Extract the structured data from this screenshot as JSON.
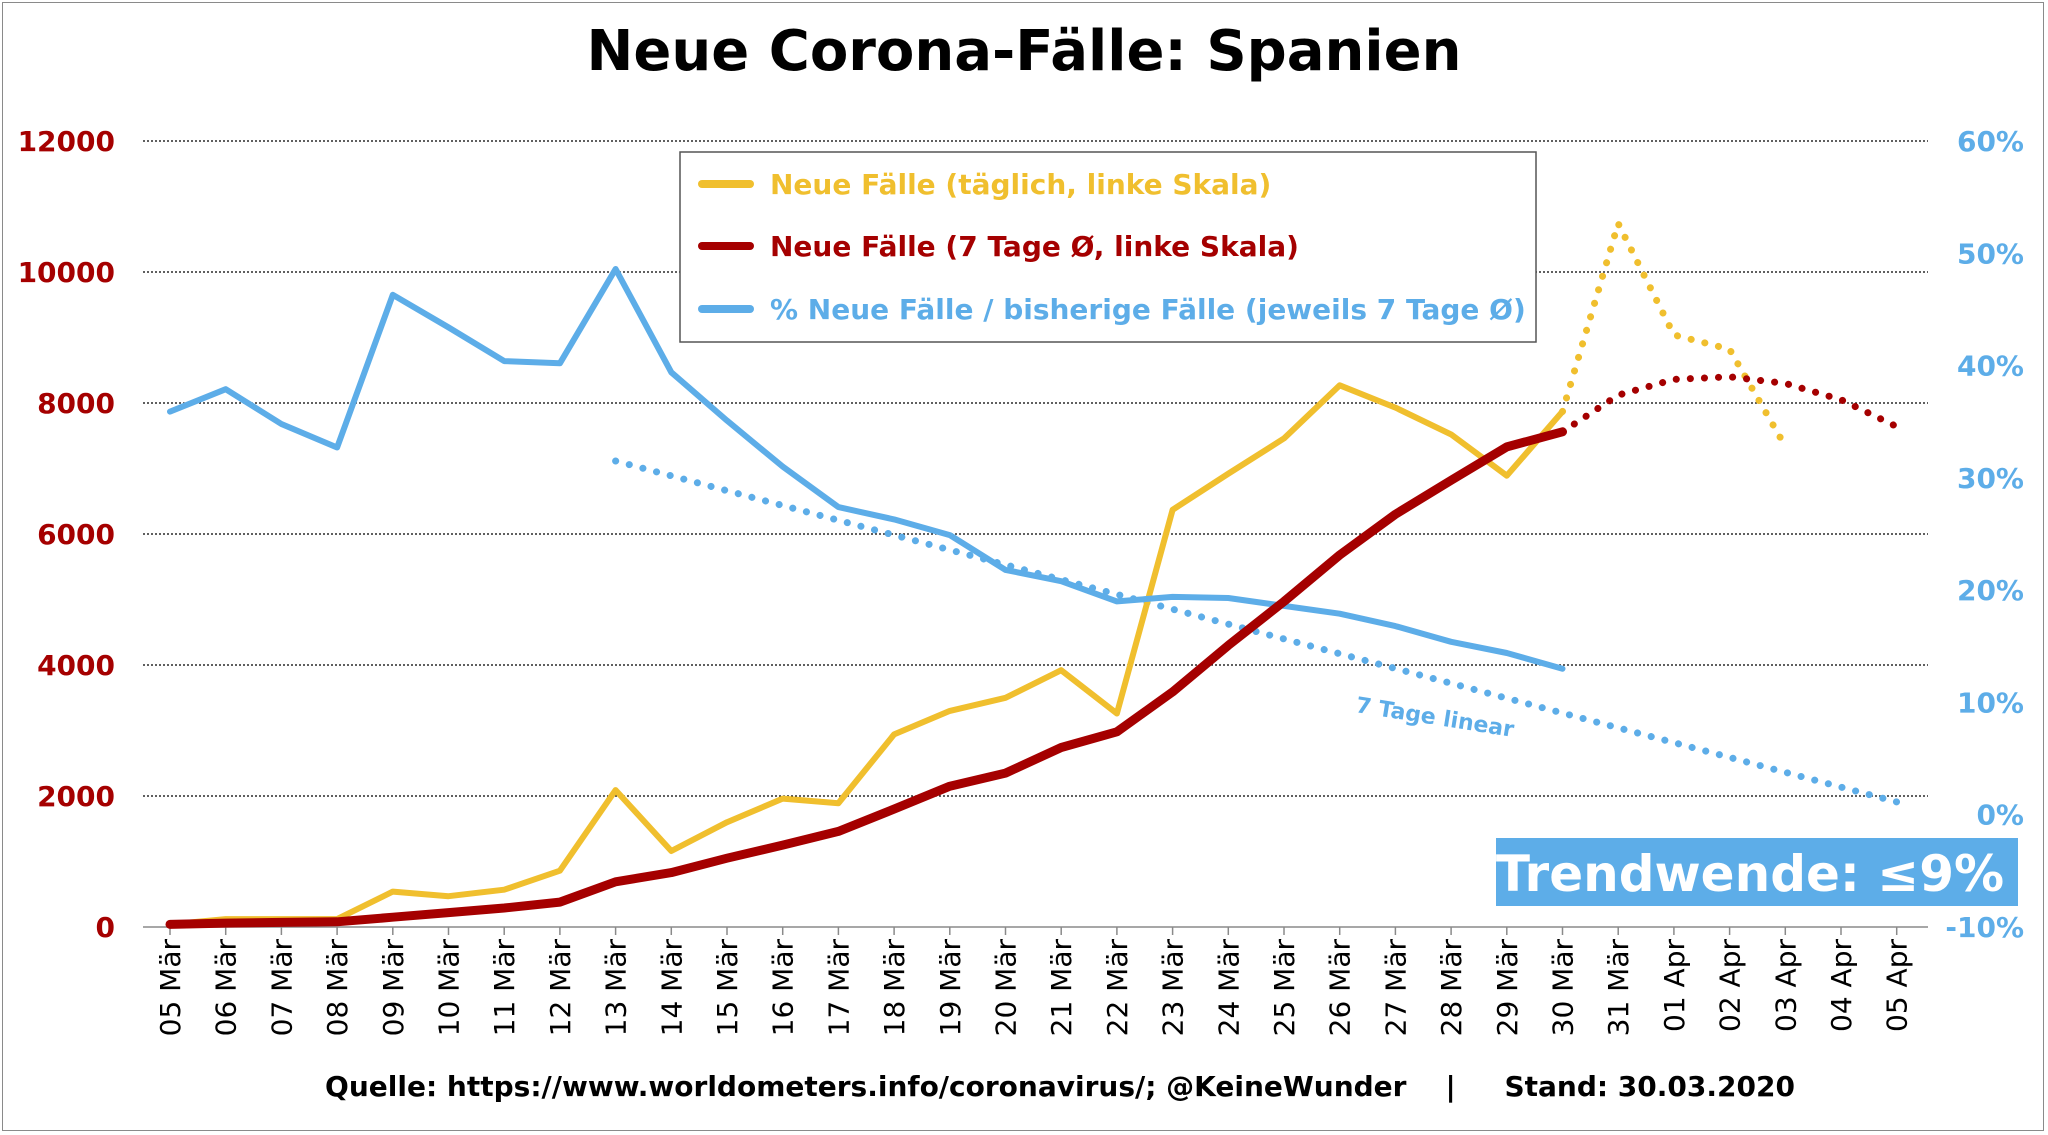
{
  "chart_data": {
    "type": "line",
    "title": "Neue Corona-Fälle: Spanien",
    "categories": [
      "05 Mär",
      "06 Mär",
      "07 Mär",
      "08 Mär",
      "09 Mär",
      "10 Mär",
      "11 Mär",
      "12 Mär",
      "13 Mär",
      "14 Mär",
      "15 Mär",
      "16 Mär",
      "17 Mär",
      "18 Mär",
      "19 Mär",
      "20 Mär",
      "21 Mär",
      "22 Mär",
      "23 Mär",
      "24 Mär",
      "25 Mär",
      "26 Mär",
      "27 Mär",
      "28 Mär",
      "29 Mär",
      "30 Mär",
      "31 Mär",
      "01 Apr",
      "02 Apr",
      "03 Apr",
      "04 Apr",
      "05 Apr"
    ],
    "y_left": {
      "ticks": [
        "0",
        "2000",
        "4000",
        "6000",
        "8000",
        "10000",
        "12000"
      ],
      "ylim": [
        0,
        12000
      ],
      "color": "#a50000"
    },
    "y_right": {
      "ticks": [
        "-10%",
        "0%",
        "10%",
        "20%",
        "30%",
        "40%",
        "50%",
        "60%"
      ],
      "ylim": [
        -10,
        60
      ],
      "color": "#5dade8"
    },
    "grid": true,
    "legend_position": "top-center",
    "series": [
      {
        "name": "Neue Fälle (täglich, linke Skala)",
        "axis": "left",
        "color": "#f0bf2e",
        "values": [
          40,
          120,
          120,
          120,
          540,
          470,
          570,
          860,
          2090,
          1160,
          1600,
          1960,
          1890,
          2940,
          3300,
          3500,
          3920,
          3260,
          6370,
          6920,
          7460,
          8270,
          7930,
          7520,
          6890,
          7870,
          null,
          null,
          null,
          null,
          null,
          null
        ],
        "projection": [
          null,
          null,
          null,
          null,
          null,
          null,
          null,
          null,
          null,
          null,
          null,
          null,
          null,
          null,
          null,
          null,
          null,
          null,
          null,
          null,
          null,
          null,
          null,
          null,
          null,
          7870,
          10740,
          9040,
          8820,
          7340,
          null,
          null
        ]
      },
      {
        "name": "Neue Fälle (7 Tage Ø, linke Skala)",
        "axis": "left",
        "color": "#a50000",
        "values": [
          40,
          60,
          70,
          80,
          150,
          220,
          290,
          380,
          690,
          830,
          1050,
          1250,
          1460,
          1800,
          2150,
          2350,
          2740,
          2980,
          3590,
          4300,
          4970,
          5680,
          6300,
          6820,
          7330,
          7560,
          null,
          null,
          null,
          null,
          null,
          null
        ],
        "projection": [
          null,
          null,
          null,
          null,
          null,
          null,
          null,
          null,
          null,
          null,
          null,
          null,
          null,
          null,
          null,
          null,
          null,
          null,
          null,
          null,
          null,
          null,
          null,
          null,
          null,
          7560,
          8120,
          8360,
          8400,
          8300,
          8050,
          7640
        ]
      },
      {
        "name": "% Neue Fälle / bisherige Fälle (jeweils 7 Tage Ø)",
        "axis": "right",
        "color": "#5dade8",
        "values": [
          35.9,
          37.9,
          34.8,
          32.7,
          46.3,
          43.4,
          40.4,
          40.2,
          48.6,
          39.4,
          35.1,
          31.0,
          27.4,
          26.3,
          24.9,
          21.8,
          20.8,
          19.0,
          19.4,
          19.3,
          18.6,
          17.9,
          16.8,
          15.4,
          14.4,
          13.0,
          null,
          null,
          null,
          null,
          null,
          null
        ]
      },
      {
        "axis": "right",
        "color": "#5dade8",
        "style": "dotted",
        "values": [
          null,
          null,
          null,
          null,
          null,
          null,
          null,
          null,
          31.5,
          30.18,
          28.86,
          27.54,
          26.22,
          24.9,
          23.58,
          22.26,
          20.94,
          19.62,
          18.3,
          16.98,
          15.66,
          14.34,
          13.02,
          11.7,
          10.38,
          9.06,
          7.74,
          6.42,
          5.1,
          3.78,
          2.46,
          1.14
        ]
      }
    ],
    "annotations": {
      "trend_label": "7 Tage linear",
      "callout": "Trendwende: ≤9%",
      "callout_bg": "#5dade8"
    },
    "source_text": "Quelle: https://www.worldometers.info/coronavirus/; @KeineWunder    |     Stand: 30.03.2020"
  }
}
